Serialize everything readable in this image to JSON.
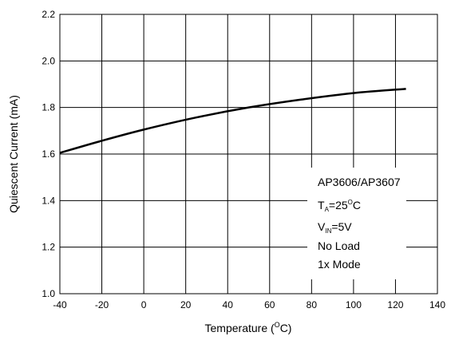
{
  "chart_data": {
    "type": "line",
    "title": "",
    "xlabel": "Temperature (",
    "xlabel_sup": "O",
    "xlabel_tail": "C)",
    "ylabel": "Quiescent Current (mA)",
    "xlim": [
      -40,
      140
    ],
    "ylim": [
      1.0,
      2.2
    ],
    "x_ticks": [
      "-40",
      "-20",
      "0",
      "20",
      "40",
      "60",
      "80",
      "100",
      "120",
      "140"
    ],
    "y_ticks": [
      "1.0",
      "1.2",
      "1.4",
      "1.6",
      "1.8",
      "2.0",
      "2.2"
    ],
    "grid": true,
    "series": [
      {
        "x": [
          -40,
          -20,
          0,
          25,
          50,
          75,
          100,
          125
        ],
        "y": [
          1.605,
          1.657,
          1.705,
          1.757,
          1.8,
          1.834,
          1.862,
          1.88
        ]
      }
    ],
    "annotation": {
      "line1": "AP3606/AP3607",
      "line2_main": "T",
      "line2_sub": "A",
      "line2_mid": "=25",
      "line2_sup": "O",
      "line2_tail": "C",
      "line3_main": "V",
      "line3_sub": "IN",
      "line3_tail": "=5V",
      "line4": "No Load",
      "line5": "1x Mode"
    }
  }
}
